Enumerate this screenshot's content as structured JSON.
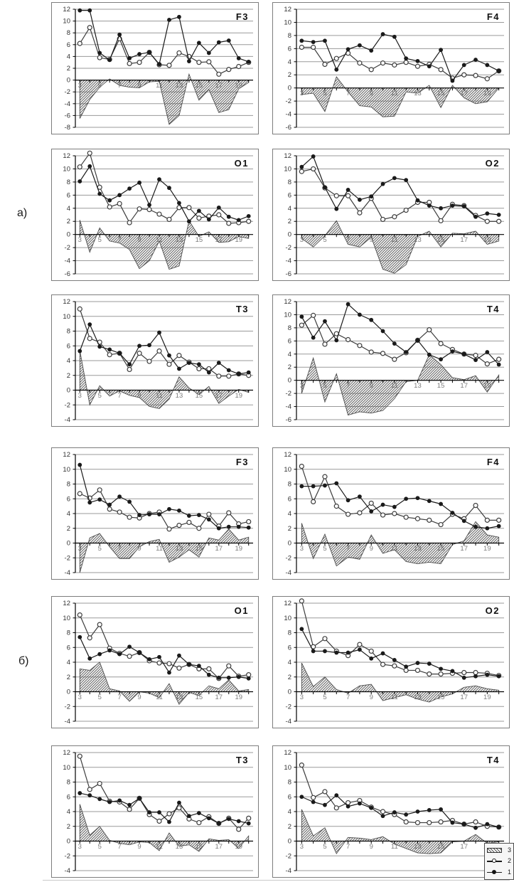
{
  "figure": {
    "description": "Two groups of six channel charts (F3, F4, O1, O2, T3, T4), each with series 1 (filled markers), 2 (open markers) and hatched difference area 3"
  },
  "group_labels": [
    {
      "id": "a",
      "text": "а)"
    },
    {
      "id": "b",
      "text": "б)"
    }
  ],
  "legend": {
    "items": [
      {
        "label": "3",
        "type": "hatch-swatch"
      },
      {
        "label": "2",
        "type": "open-circle-line"
      },
      {
        "label": "1",
        "type": "filled-circle-line"
      }
    ]
  },
  "colors": {
    "line1": "#1a1a1a",
    "line2": "#3d3d3d",
    "marker_open_fill": "#ffffff",
    "hatch_stroke": "#4d4d4d",
    "grid": "#9a9a9a",
    "axis": "#000000",
    "y_tick_label": "#333333",
    "x_tick_label": "#7d7d7d",
    "title": "#111111",
    "chart_border": "#7d7d7d"
  },
  "axes": {
    "x": [
      3,
      4,
      5,
      6,
      7,
      8,
      9,
      10,
      11,
      12,
      13,
      14,
      15,
      16,
      17,
      18,
      19,
      20
    ],
    "x_tick_labels": [
      3,
      5,
      7,
      9,
      11,
      13,
      15,
      17,
      19
    ],
    "y_step": 2,
    "y_max": 12
  },
  "chart_data": [
    {
      "type": "line+area",
      "group": "а",
      "title": "F3",
      "ylim": [
        -8,
        12
      ],
      "series": [
        {
          "name": "1",
          "values": [
            11.8,
            11.8,
            4.6,
            3.4,
            7.7,
            3.7,
            4.4,
            4.7,
            2.7,
            10.2,
            10.7,
            3.2,
            6.3,
            4.6,
            6.4,
            6.7,
            3.7,
            3.1
          ]
        },
        {
          "name": "2",
          "values": [
            6.2,
            8.9,
            3.8,
            3.5,
            7.0,
            2.8,
            3.0,
            4.7,
            2.6,
            2.5,
            4.6,
            4.0,
            3.0,
            3.1,
            1.0,
            1.8,
            2.3,
            3.0
          ]
        },
        {
          "name": "3",
          "values": [
            -6.5,
            -3.3,
            -1.2,
            0.2,
            -0.9,
            -1.2,
            -1.3,
            -0.3,
            -0.2,
            -7.5,
            -6.0,
            1.0,
            -3.4,
            -1.6,
            -5.5,
            -5.0,
            -1.5,
            -0.4
          ]
        }
      ]
    },
    {
      "type": "line+area",
      "group": "а",
      "title": "F4",
      "ylim": [
        -6,
        12
      ],
      "series": [
        {
          "name": "1",
          "values": [
            7.2,
            7.0,
            7.2,
            2.8,
            5.9,
            6.5,
            5.7,
            8.2,
            7.8,
            4.5,
            4.1,
            3.3,
            5.8,
            1.1,
            3.5,
            4.3,
            3.5,
            2.6
          ]
        },
        {
          "name": "2",
          "values": [
            6.2,
            6.2,
            3.6,
            4.5,
            5.3,
            3.8,
            2.8,
            3.8,
            3.5,
            3.9,
            3.3,
            3.6,
            2.8,
            1.5,
            2.0,
            1.9,
            1.4,
            2.6
          ]
        },
        {
          "name": "3",
          "values": [
            -1.0,
            -0.8,
            -3.6,
            1.7,
            -0.6,
            -2.7,
            -2.9,
            -4.4,
            -4.3,
            -0.6,
            -0.8,
            0.4,
            -3.0,
            0.4,
            -1.5,
            -2.4,
            -2.1,
            0.0
          ]
        }
      ]
    },
    {
      "type": "line+area",
      "group": "а",
      "title": "O1",
      "ylim": [
        -6,
        12
      ],
      "series": [
        {
          "name": "1",
          "values": [
            8.1,
            10.4,
            6.2,
            5.2,
            6.0,
            7.0,
            7.9,
            4.5,
            8.4,
            7.1,
            4.8,
            2.0,
            3.6,
            2.3,
            4.1,
            2.7,
            2.2,
            2.8
          ]
        },
        {
          "name": "2",
          "values": [
            10.3,
            12.4,
            7.2,
            4.2,
            4.7,
            1.8,
            3.9,
            3.8,
            3.1,
            2.3,
            4.1,
            4.1,
            2.5,
            2.8,
            3.0,
            1.7,
            1.8,
            2.0
          ]
        },
        {
          "name": "3",
          "values": [
            2.2,
            -2.7,
            1.0,
            -1.0,
            -1.3,
            -2.3,
            -5.2,
            -4.0,
            -1.0,
            -5.3,
            -4.8,
            2.1,
            -0.3,
            0.4,
            -1.2,
            -1.1,
            -0.3,
            -0.6
          ]
        }
      ]
    },
    {
      "type": "line+area",
      "group": "а",
      "title": "O2",
      "ylim": [
        -6,
        12
      ],
      "series": [
        {
          "name": "1",
          "values": [
            10.3,
            11.9,
            7.2,
            3.9,
            6.8,
            5.3,
            5.8,
            7.7,
            8.6,
            8.3,
            5.2,
            4.4,
            4.0,
            4.4,
            4.3,
            2.7,
            3.2,
            3.0
          ]
        },
        {
          "name": "2",
          "values": [
            9.6,
            10.0,
            7.1,
            5.9,
            5.9,
            3.3,
            5.5,
            2.3,
            2.7,
            3.7,
            4.9,
            4.9,
            2.1,
            4.6,
            4.4,
            2.9,
            2.0,
            2.0
          ]
        },
        {
          "name": "3",
          "values": [
            -0.6,
            -1.9,
            -0.2,
            2.1,
            -1.5,
            -1.9,
            -0.4,
            -5.3,
            -5.9,
            -4.6,
            -0.3,
            0.5,
            -1.9,
            0.2,
            0.1,
            0.5,
            -1.5,
            -1.0
          ]
        }
      ]
    },
    {
      "type": "line+area",
      "group": "а",
      "title": "T3",
      "ylim": [
        -4,
        12
      ],
      "series": [
        {
          "name": "1",
          "values": [
            5.3,
            8.9,
            5.9,
            5.5,
            5.0,
            3.5,
            6.0,
            6.1,
            7.8,
            4.7,
            2.9,
            3.7,
            3.5,
            2.4,
            3.7,
            2.7,
            2.2,
            2.4
          ]
        },
        {
          "name": "2",
          "values": [
            11.0,
            7.0,
            6.5,
            4.8,
            5.0,
            2.8,
            5.0,
            3.9,
            5.3,
            3.5,
            4.7,
            3.8,
            2.9,
            2.9,
            1.9,
            1.9,
            2.2,
            2.0
          ]
        },
        {
          "name": "3",
          "values": [
            5.4,
            -2.0,
            0.6,
            -0.8,
            -0.1,
            -0.7,
            -1.0,
            -2.2,
            -2.5,
            -1.2,
            1.8,
            0.3,
            -0.6,
            0.5,
            -1.8,
            -0.8,
            0.1,
            -0.3
          ]
        }
      ]
    },
    {
      "type": "line+area",
      "group": "а",
      "title": "T4",
      "ylim": [
        -6,
        12
      ],
      "series": [
        {
          "name": "1",
          "values": [
            9.7,
            6.5,
            9.0,
            6.1,
            11.6,
            10.0,
            9.2,
            7.5,
            5.6,
            4.3,
            6.1,
            3.9,
            3.2,
            4.4,
            4.0,
            3.1,
            4.3,
            2.4
          ]
        },
        {
          "name": "2",
          "values": [
            8.4,
            9.9,
            5.5,
            7.1,
            6.2,
            5.3,
            4.3,
            4.1,
            3.2,
            4.2,
            6.1,
            7.7,
            5.6,
            4.7,
            4.0,
            3.8,
            2.5,
            3.2
          ]
        },
        {
          "name": "3",
          "values": [
            -2.0,
            3.4,
            -3.3,
            1.0,
            -5.3,
            -4.8,
            -5.0,
            -4.6,
            -2.8,
            -0.2,
            0.0,
            3.9,
            2.4,
            0.4,
            0.1,
            0.7,
            -1.8,
            0.8
          ]
        }
      ]
    },
    {
      "type": "line+area",
      "group": "б",
      "title": "F3",
      "ylim": [
        -4,
        12
      ],
      "series": [
        {
          "name": "1",
          "values": [
            10.6,
            5.5,
            5.9,
            5.2,
            6.3,
            5.6,
            3.8,
            3.9,
            3.9,
            4.6,
            4.4,
            3.7,
            3.8,
            3.2,
            2.0,
            2.2,
            2.2,
            2.1
          ]
        },
        {
          "name": "2",
          "values": [
            6.7,
            6.1,
            7.2,
            4.6,
            4.2,
            3.5,
            3.4,
            4.0,
            4.2,
            1.9,
            2.4,
            2.8,
            2.0,
            3.9,
            2.3,
            4.1,
            2.6,
            2.9
          ]
        },
        {
          "name": "3",
          "values": [
            -4.0,
            0.7,
            1.3,
            -0.5,
            -2.1,
            -2.1,
            -0.5,
            0.2,
            0.5,
            -2.6,
            -1.9,
            -0.9,
            -1.9,
            0.7,
            0.4,
            1.9,
            0.4,
            0.8
          ]
        }
      ]
    },
    {
      "type": "line+area",
      "group": "б",
      "title": "F4",
      "ylim": [
        -4,
        12
      ],
      "series": [
        {
          "name": "1",
          "values": [
            7.7,
            7.7,
            7.8,
            8.1,
            5.8,
            6.3,
            4.3,
            5.2,
            4.9,
            6.0,
            6.1,
            5.7,
            5.3,
            4.1,
            3.0,
            2.2,
            2.0,
            2.3
          ]
        },
        {
          "name": "2",
          "values": [
            10.4,
            5.6,
            9.0,
            5.0,
            3.9,
            4.1,
            5.4,
            3.8,
            4.0,
            3.5,
            3.3,
            3.1,
            2.5,
            3.9,
            3.3,
            5.1,
            3.1,
            3.1
          ]
        },
        {
          "name": "3",
          "values": [
            2.7,
            -2.1,
            1.2,
            -3.1,
            -1.9,
            -2.2,
            1.1,
            -1.4,
            -0.9,
            -2.5,
            -2.8,
            -2.6,
            -2.8,
            -0.2,
            0.3,
            2.9,
            1.1,
            0.8
          ]
        }
      ]
    },
    {
      "type": "line+area",
      "group": "б",
      "title": "O1",
      "ylim": [
        -4,
        12
      ],
      "series": [
        {
          "name": "1",
          "values": [
            7.4,
            4.5,
            5.1,
            5.6,
            5.1,
            6.1,
            5.3,
            4.4,
            4.7,
            2.6,
            4.9,
            3.7,
            3.5,
            2.3,
            1.9,
            1.9,
            2.0,
            1.8
          ]
        },
        {
          "name": "2",
          "values": [
            10.4,
            7.3,
            9.1,
            5.9,
            5.2,
            4.8,
            5.3,
            4.2,
            3.9,
            3.8,
            3.2,
            3.7,
            3.1,
            3.1,
            1.8,
            3.5,
            2.1,
            2.3
          ]
        },
        {
          "name": "3",
          "values": [
            3.1,
            2.9,
            4.0,
            0.4,
            0.1,
            -1.3,
            0.0,
            -0.2,
            -0.8,
            1.1,
            -1.7,
            -0.1,
            -0.5,
            0.8,
            0.4,
            1.6,
            0.1,
            0.3
          ]
        }
      ]
    },
    {
      "type": "line+area",
      "group": "б",
      "title": "O2",
      "ylim": [
        -4,
        12
      ],
      "series": [
        {
          "name": "1",
          "values": [
            8.5,
            5.5,
            5.5,
            5.3,
            5.3,
            5.7,
            4.5,
            5.2,
            4.3,
            3.4,
            3.9,
            3.8,
            3.1,
            2.8,
            1.9,
            2.1,
            2.3,
            2.1
          ]
        },
        {
          "name": "2",
          "values": [
            12.3,
            6.1,
            7.2,
            5.5,
            4.9,
            6.4,
            5.5,
            3.7,
            3.5,
            2.9,
            2.9,
            2.4,
            2.4,
            2.5,
            2.6,
            2.6,
            2.5,
            2.2
          ]
        },
        {
          "name": "3",
          "values": [
            3.9,
            0.7,
            2.0,
            0.3,
            -0.2,
            0.8,
            1.0,
            -1.2,
            -0.8,
            -0.4,
            -1.0,
            -1.4,
            -0.7,
            -0.3,
            0.6,
            0.8,
            0.4,
            0.2
          ]
        }
      ]
    },
    {
      "type": "line+area",
      "group": "б",
      "title": "T3",
      "ylim": [
        -4,
        12
      ],
      "series": [
        {
          "name": "1",
          "values": [
            6.5,
            6.2,
            5.7,
            5.3,
            5.5,
            4.9,
            5.8,
            3.9,
            3.9,
            2.6,
            5.2,
            3.4,
            3.8,
            3.1,
            2.4,
            3.0,
            2.7,
            2.4
          ]
        },
        {
          "name": "2",
          "values": [
            11.5,
            7.0,
            7.8,
            5.4,
            5.3,
            4.3,
            5.8,
            3.6,
            2.7,
            3.7,
            4.5,
            3.0,
            2.5,
            3.3,
            2.4,
            3.1,
            1.6,
            3.1
          ]
        },
        {
          "name": "3",
          "values": [
            5.0,
            0.8,
            2.0,
            0.1,
            -0.3,
            -0.5,
            -0.1,
            -0.2,
            -1.3,
            1.1,
            -0.7,
            -0.5,
            -1.4,
            0.3,
            0.1,
            0.2,
            -1.0,
            0.7
          ]
        }
      ]
    },
    {
      "type": "line+area",
      "group": "б",
      "title": "T4",
      "ylim": [
        -4,
        12
      ],
      "series": [
        {
          "name": "1",
          "values": [
            6.0,
            5.3,
            4.9,
            6.2,
            4.7,
            5.1,
            4.5,
            3.4,
            3.9,
            3.6,
            4.0,
            4.2,
            4.3,
            2.5,
            2.3,
            1.8,
            2.3,
            1.9
          ]
        },
        {
          "name": "2",
          "values": [
            10.3,
            5.9,
            6.7,
            4.5,
            5.2,
            5.5,
            4.6,
            4.0,
            3.6,
            2.6,
            2.5,
            2.5,
            2.6,
            2.8,
            2.3,
            2.6,
            2.0,
            1.9
          ]
        },
        {
          "name": "3",
          "values": [
            4.3,
            0.7,
            1.8,
            -1.7,
            0.5,
            0.4,
            0.2,
            0.6,
            -0.4,
            -1.0,
            -1.6,
            -1.7,
            -1.6,
            -0.1,
            0.0,
            0.9,
            -0.3,
            -0.1
          ]
        }
      ]
    }
  ]
}
